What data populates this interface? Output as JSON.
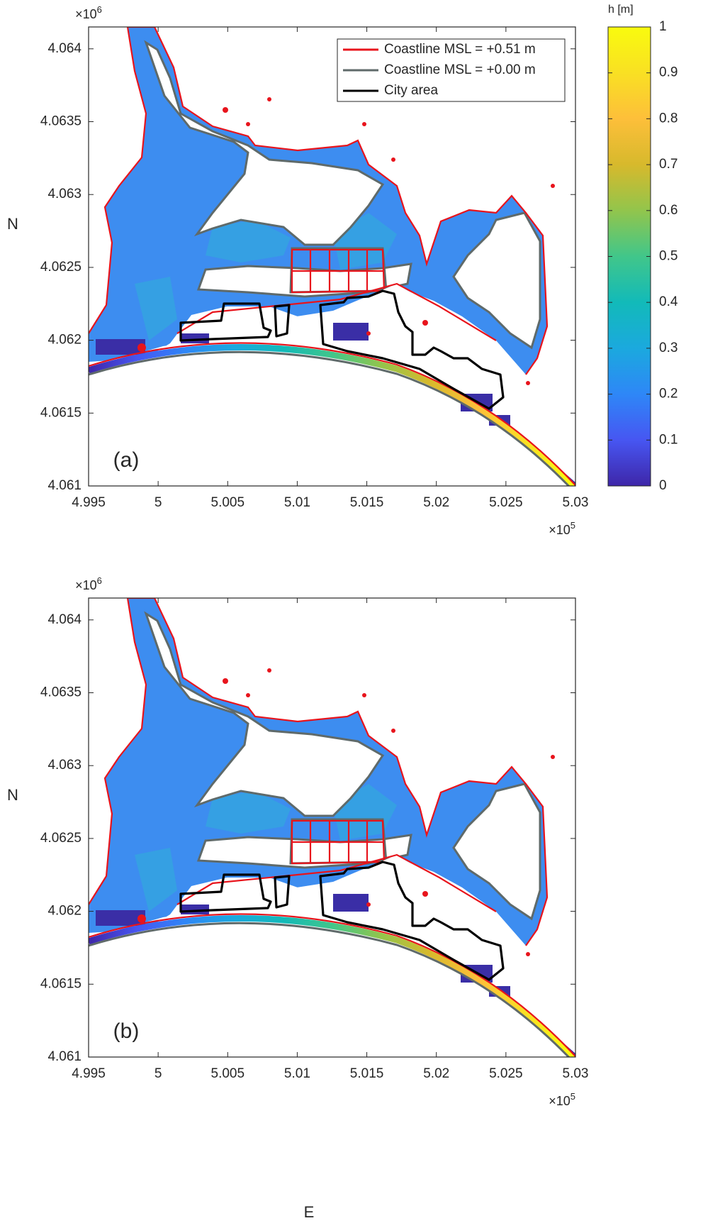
{
  "axes": {
    "xlim": [
      4.995,
      5.03
    ],
    "xticks": [
      4.995,
      5,
      5.005,
      5.01,
      5.015,
      5.02,
      5.025,
      5.03
    ],
    "ylim": [
      4.061,
      4.06415
    ],
    "yticks": [
      4.061,
      4.0615,
      4.062,
      4.0625,
      4.063,
      4.0635,
      4.064
    ],
    "x_multiplier": {
      "base": "×10",
      "exponent": "5"
    },
    "y_multiplier": {
      "base": "×10",
      "exponent": "6"
    }
  },
  "panels": [
    {
      "panel_label": "(a)",
      "y_label": "N"
    },
    {
      "panel_label": "(b)",
      "y_label": "N",
      "x_label": "E"
    }
  ],
  "legend": [
    {
      "label": "Coastline MSL = +0.51 m",
      "color": "#e8141c"
    },
    {
      "label": "Coastline MSL = +0.00 m",
      "color": "#5f6a6a"
    },
    {
      "label": "City area",
      "color": "#000000"
    }
  ],
  "colorbar": {
    "title": "h [m]",
    "lim": [
      0,
      1
    ],
    "ticks": [
      0,
      0.1,
      0.2,
      0.3,
      0.4,
      0.5,
      0.6,
      0.7,
      0.8,
      0.9,
      1
    ],
    "colormap": [
      "#3e26a8",
      "#4756f2",
      "#2e87f7",
      "#1ba9de",
      "#12bab9",
      "#41c68a",
      "#92c54c",
      "#d7b92c",
      "#fdbf3a",
      "#f9e023",
      "#f9fb0e"
    ]
  }
}
